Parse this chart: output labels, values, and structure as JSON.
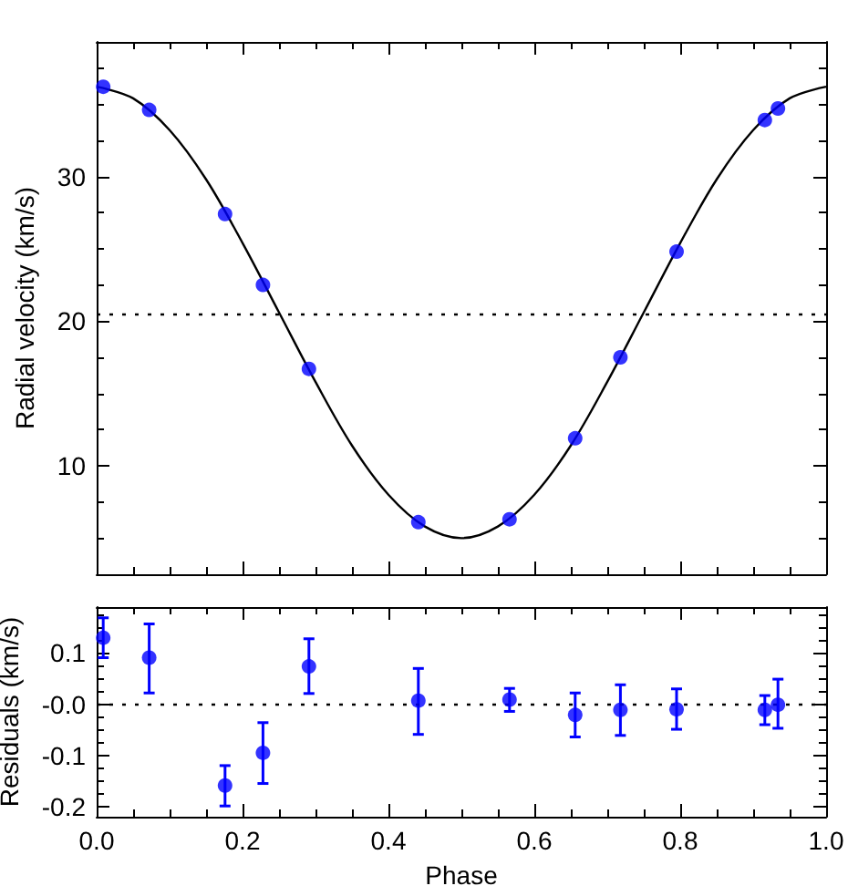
{
  "chart_data": [
    {
      "type": "scatter",
      "ylabel": "Radial velocity (km/s)",
      "xlim": [
        0,
        1
      ],
      "xticks": [
        0,
        0.2,
        0.4,
        0.6,
        0.8,
        1
      ],
      "ylim": [
        2.5,
        39.3
      ],
      "yticks": [
        10,
        20,
        30
      ],
      "tick_labels": "y",
      "grid": false,
      "series": [
        {
          "color": "#0000ff",
          "marker": "circle",
          "x": [
            0.009,
            0.072,
            0.176,
            0.228,
            0.291,
            0.441,
            0.566,
            0.656,
            0.718,
            0.795,
            0.916,
            0.934
          ],
          "values": [
            36.2,
            34.6,
            27.4,
            22.5,
            16.7,
            6.1,
            6.3,
            11.9,
            17.5,
            24.8,
            33.9,
            34.7
          ]
        },
        {
          "type": "line",
          "color": "#000000",
          "marker": "none",
          "line_style": "solid",
          "x": [
            0,
            0.05,
            0.1,
            0.15,
            0.2,
            0.25,
            0.3,
            0.35,
            0.4,
            0.45,
            0.5,
            0.55,
            0.6,
            0.65,
            0.7,
            0.75,
            0.8,
            0.85,
            0.9,
            0.95,
            1
          ],
          "values": [
            36.2,
            35.4,
            33.2,
            29.8,
            25.4,
            20.6,
            15.8,
            11.4,
            8.0,
            5.8,
            5.0,
            5.8,
            8.0,
            11.4,
            15.8,
            20.6,
            25.4,
            29.8,
            33.2,
            35.4,
            36.2
          ]
        }
      ],
      "ref_lines": [
        {
          "axis": "y",
          "value": 20.5,
          "color": "#000000",
          "line_style": "dotted"
        }
      ]
    },
    {
      "type": "scatter",
      "xlabel": "Phase",
      "ylabel": "Residuals (km/s)",
      "xlim": [
        0,
        1
      ],
      "xticks": [
        {
          "value": 0,
          "label": "0.0"
        },
        {
          "value": 0.2,
          "label": "0.2"
        },
        {
          "value": 0.4,
          "label": "0.4"
        },
        {
          "value": 0.6,
          "label": "0.6"
        },
        {
          "value": 0.8,
          "label": "0.8"
        },
        {
          "value": 1,
          "label": "1.0"
        }
      ],
      "ylim": [
        -0.22,
        0.19
      ],
      "yticks": [
        -0.2,
        -0.1,
        {
          "value": 0,
          "label": "-0.0"
        },
        0.1
      ],
      "grid": false,
      "marker": "circle",
      "series": [
        {
          "color": "#0000ff",
          "x": [
            0.009,
            0.072,
            0.176,
            0.228,
            0.291,
            0.441,
            0.566,
            0.656,
            0.718,
            0.795,
            0.916,
            0.934
          ],
          "values": [
            0.13,
            0.091,
            -0.159,
            -0.095,
            0.074,
            0.007,
            0.009,
            -0.021,
            -0.011,
            -0.01,
            -0.011,
            -0.001
          ],
          "errors": [
            [
              0.091,
              0.169
            ],
            [
              0.022,
              0.157
            ],
            [
              -0.199,
              -0.12
            ],
            [
              -0.155,
              -0.036
            ],
            [
              0.021,
              0.128
            ],
            [
              -0.059,
              0.07
            ],
            [
              -0.014,
              0.031
            ],
            [
              -0.064,
              0.022
            ],
            [
              -0.061,
              0.038
            ],
            [
              -0.049,
              0.03
            ],
            [
              -0.04,
              0.017
            ],
            [
              -0.047,
              0.049
            ]
          ]
        }
      ],
      "ref_lines": [
        {
          "axis": "y",
          "value": 0,
          "color": "#000000",
          "line_style": "dotted"
        }
      ]
    }
  ]
}
